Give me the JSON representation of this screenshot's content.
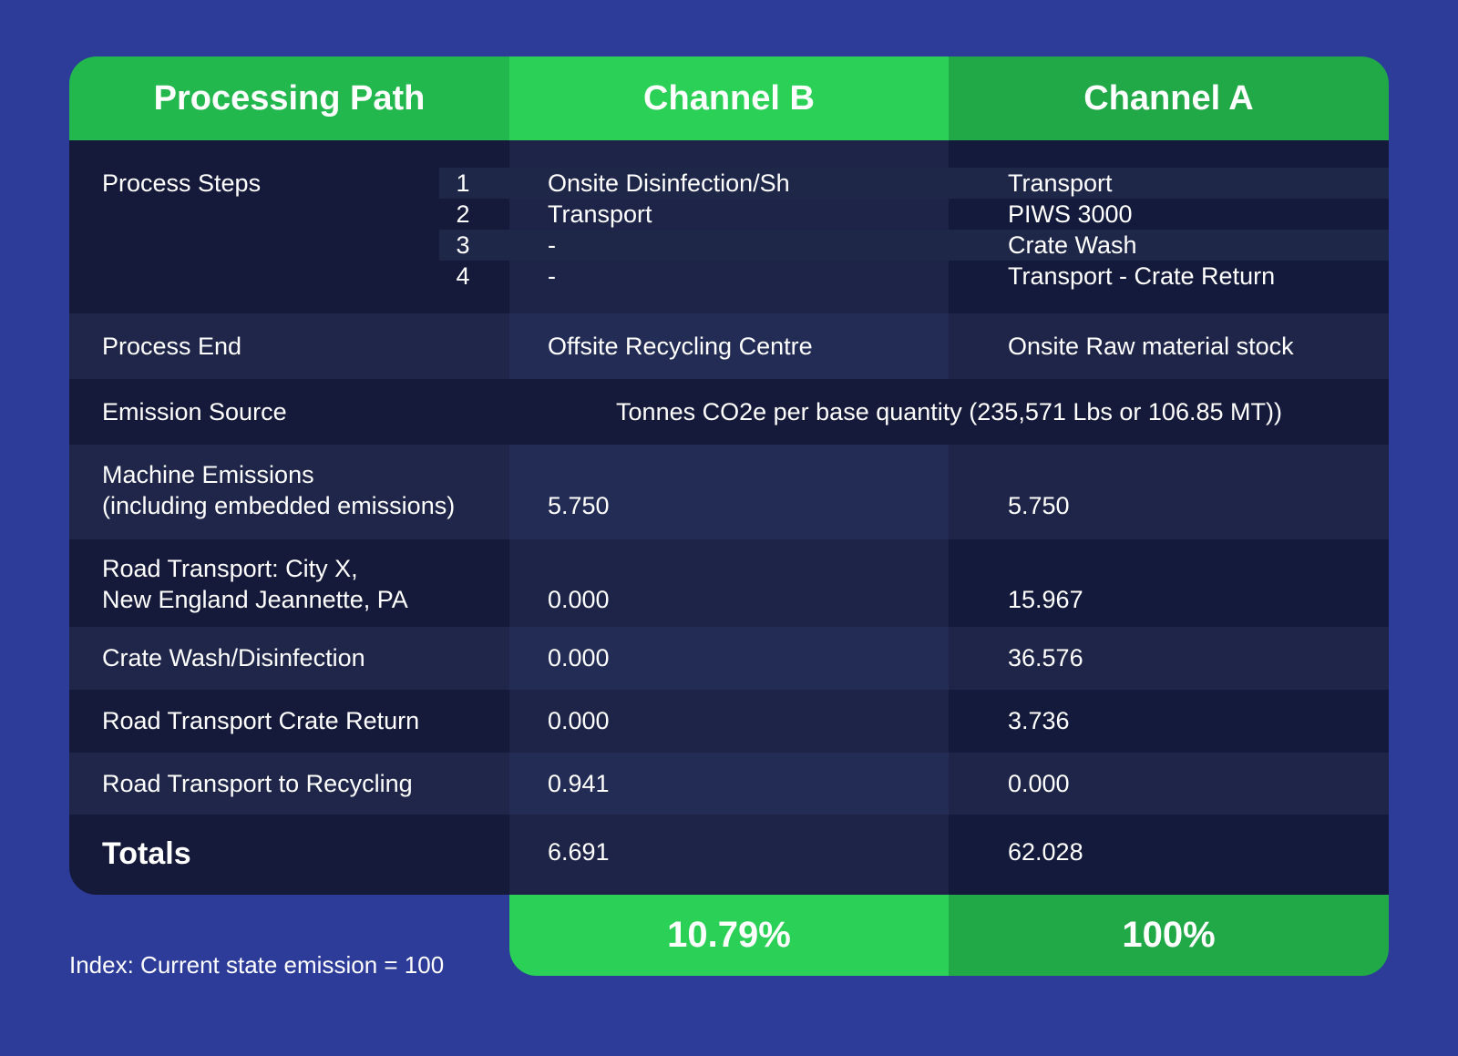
{
  "header": {
    "col1": "Processing Path",
    "col2": "Channel B",
    "col3": "Channel A"
  },
  "process_steps": {
    "label": "Process Steps",
    "steps": [
      {
        "num": "1",
        "channel_b": "Onsite Disinfection/Sh",
        "channel_a": "Transport"
      },
      {
        "num": "2",
        "channel_b": "Transport",
        "channel_a": "PIWS 3000"
      },
      {
        "num": "3",
        "channel_b": "-",
        "channel_a": "Crate Wash"
      },
      {
        "num": "4",
        "channel_b": "-",
        "channel_a": "Transport - Crate Return"
      }
    ]
  },
  "process_end": {
    "label": "Process End",
    "channel_b": "Offsite Recycling Centre",
    "channel_a": "Onsite Raw material stock"
  },
  "emission_source": {
    "label": "Emission Source",
    "value": "Tonnes CO2e per base quantity (235,571 Lbs or 106.85 MT))"
  },
  "rows": [
    {
      "label_line1": "Machine Emissions",
      "label_line2": "(including embedded emissions)",
      "channel_b": "5.750",
      "channel_a": "5.750"
    },
    {
      "label_line1": "Road Transport: City X,",
      "label_line2": "New England Jeannette, PA",
      "channel_b": "0.000",
      "channel_a": "15.967"
    },
    {
      "label_line1": "Crate Wash/Disinfection",
      "label_line2": "",
      "channel_b": "0.000",
      "channel_a": "36.576"
    },
    {
      "label_line1": "Road Transport Crate Return",
      "label_line2": "",
      "channel_b": "0.000",
      "channel_a": "3.736"
    },
    {
      "label_line1": "Road Transport to Recycling",
      "label_line2": "",
      "channel_b": "0.941",
      "channel_a": "0.000"
    }
  ],
  "totals": {
    "label": "Totals",
    "channel_b": "6.691",
    "channel_a": "62.028"
  },
  "index": {
    "channel_b": "10.79%",
    "channel_a": "100%",
    "note": "Index: Current state emission = 100"
  },
  "colors": {
    "background": "#2c3c98",
    "accent_green": "#2ad156",
    "dark_row": "#161a3a"
  }
}
